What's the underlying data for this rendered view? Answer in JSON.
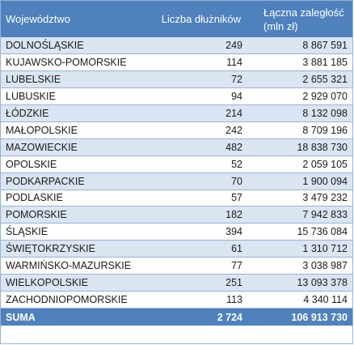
{
  "header": {
    "col1": "Województwo",
    "col2": "Liczba dłużników",
    "col3_line1": "Łączna zaległość",
    "col3_line2": "(mln zł)"
  },
  "rows": [
    {
      "region": "DOLNOŚLĄSKIE",
      "debtors": "249",
      "arrears": "8 867 591"
    },
    {
      "region": "KUJAWSKO-POMORSKIE",
      "debtors": "114",
      "arrears": "3 881 185"
    },
    {
      "region": "LUBELSKIE",
      "debtors": "72",
      "arrears": "2 655 321"
    },
    {
      "region": "LUBUSKIE",
      "debtors": "94",
      "arrears": "2 929 070"
    },
    {
      "region": "ŁÓDZKIE",
      "debtors": "214",
      "arrears": "8 132 098"
    },
    {
      "region": "MAŁOPOLSKIE",
      "debtors": "242",
      "arrears": "8 709 196"
    },
    {
      "region": "MAZOWIECKIE",
      "debtors": "482",
      "arrears": "18 838 730"
    },
    {
      "region": "OPOLSKIE",
      "debtors": "52",
      "arrears": "2 059 105"
    },
    {
      "region": "PODKARPACKIE",
      "debtors": "70",
      "arrears": "1 900 094"
    },
    {
      "region": "PODLASKIE",
      "debtors": "57",
      "arrears": "3 479 232"
    },
    {
      "region": "POMORSKIE",
      "debtors": "182",
      "arrears": "7 942 833"
    },
    {
      "region": "ŚLĄSKIE",
      "debtors": "394",
      "arrears": "15 736 084"
    },
    {
      "region": "ŚWIĘTOKRZYSKIE",
      "debtors": "61",
      "arrears": "1 310 712"
    },
    {
      "region": "WARMIŃSKO-MAZURSKIE",
      "debtors": "77",
      "arrears": "3 038 987"
    },
    {
      "region": "WIELKOPOLSKIE",
      "debtors": "251",
      "arrears": "13 093 378"
    },
    {
      "region": "ZACHODNIOPOMORSKIE",
      "debtors": "113",
      "arrears": "4 340 114"
    }
  ],
  "total": {
    "label": "SUMA",
    "debtors": "2 724",
    "arrears": "106 913 730"
  }
}
